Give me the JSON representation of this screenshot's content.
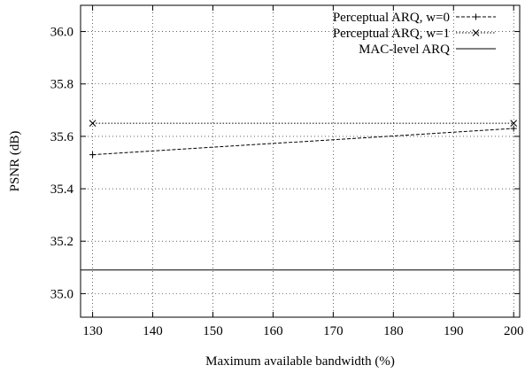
{
  "chart_data": {
    "type": "line",
    "title": "",
    "xlabel": "Maximum available bandwidth (%)",
    "ylabel": "PSNR (dB)",
    "xlim": [
      128,
      201
    ],
    "ylim": [
      34.91,
      36.1
    ],
    "xticks": [
      130,
      140,
      150,
      160,
      170,
      180,
      190,
      200
    ],
    "yticks": [
      35.0,
      35.2,
      35.4,
      35.6,
      35.8,
      36.0
    ],
    "xtick_labels": [
      "130",
      "140",
      "150",
      "160",
      "170",
      "180",
      "190",
      "200"
    ],
    "ytick_labels": [
      "35.0",
      "35.2",
      "35.4",
      "35.6",
      "35.8",
      "36.0"
    ],
    "grid": true,
    "legend_position": "top-right",
    "series": [
      {
        "name": "Perceptual ARQ, w=0",
        "x": [
          130,
          200
        ],
        "y": [
          35.53,
          35.63
        ],
        "line": "dashed",
        "marker": "plus",
        "color": "#000000"
      },
      {
        "name": "Perceptual ARQ, w=1",
        "x": [
          130,
          200
        ],
        "y": [
          35.65,
          35.65
        ],
        "line": "dotted",
        "marker": "cross",
        "color": "#000000"
      },
      {
        "name": "MAC-level ARQ",
        "x": [
          128,
          201
        ],
        "y": [
          35.09,
          35.09
        ],
        "line": "solid",
        "marker": "none",
        "color": "#000000"
      }
    ]
  }
}
